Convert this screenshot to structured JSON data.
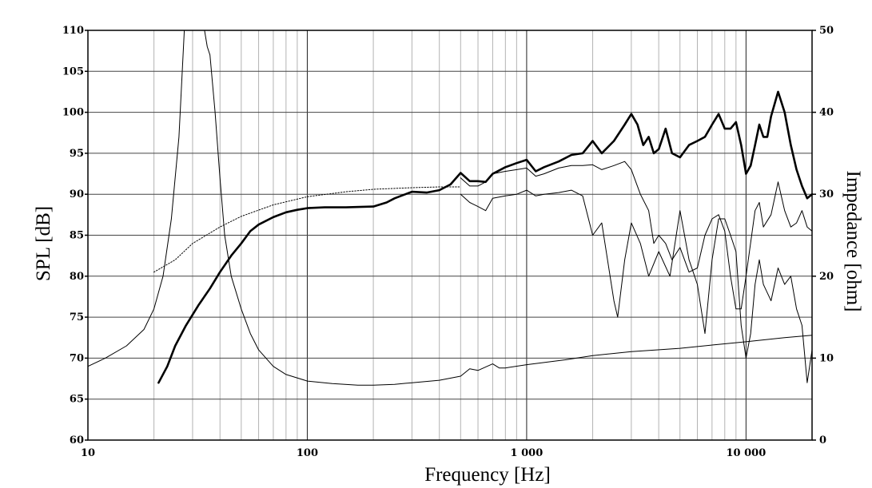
{
  "chart_data": {
    "type": "line",
    "xscale": "log",
    "xlim": [
      10,
      20000
    ],
    "ylim": [
      60,
      110
    ],
    "y2lim": [
      0,
      50
    ],
    "grid": true,
    "xlabel": "Frequency [Hz]",
    "ylabel": "SPL [dB]",
    "y2label": "Impedance [ohm]",
    "x_ticks": [
      {
        "value": 10,
        "label": "10"
      },
      {
        "value": 100,
        "label": "100"
      },
      {
        "value": 1000,
        "label": "1 000"
      },
      {
        "value": 10000,
        "label": "10 000"
      }
    ],
    "y_ticks": [
      60,
      65,
      70,
      75,
      80,
      85,
      90,
      95,
      100,
      105,
      110
    ],
    "y2_ticks": [
      0,
      10,
      20,
      30,
      40,
      50
    ],
    "series": [
      {
        "axis": "left",
        "style": "thick",
        "points": [
          [
            21,
            67
          ],
          [
            23,
            69
          ],
          [
            25,
            71.5
          ],
          [
            28,
            74
          ],
          [
            32,
            76.5
          ],
          [
            36,
            78.5
          ],
          [
            40,
            80.5
          ],
          [
            45,
            82.5
          ],
          [
            50,
            84
          ],
          [
            55,
            85.5
          ],
          [
            60,
            86.3
          ],
          [
            70,
            87.2
          ],
          [
            80,
            87.8
          ],
          [
            90,
            88.1
          ],
          [
            100,
            88.3
          ],
          [
            120,
            88.4
          ],
          [
            150,
            88.4
          ],
          [
            200,
            88.5
          ],
          [
            230,
            89
          ],
          [
            250,
            89.5
          ],
          [
            280,
            90
          ],
          [
            300,
            90.3
          ],
          [
            350,
            90.2
          ],
          [
            400,
            90.5
          ],
          [
            450,
            91.2
          ],
          [
            500,
            92.6
          ],
          [
            550,
            91.6
          ],
          [
            600,
            91.6
          ],
          [
            650,
            91.5
          ],
          [
            700,
            92.5
          ],
          [
            800,
            93.3
          ],
          [
            900,
            93.8
          ],
          [
            1000,
            94.2
          ],
          [
            1100,
            92.8
          ],
          [
            1200,
            93.3
          ],
          [
            1400,
            94
          ],
          [
            1600,
            94.8
          ],
          [
            1800,
            95
          ],
          [
            2000,
            96.5
          ],
          [
            2200,
            95
          ],
          [
            2500,
            96.5
          ],
          [
            2800,
            98.5
          ],
          [
            3000,
            99.8
          ],
          [
            3200,
            98.5
          ],
          [
            3400,
            96
          ],
          [
            3600,
            97
          ],
          [
            3800,
            95
          ],
          [
            4000,
            95.5
          ],
          [
            4300,
            98
          ],
          [
            4600,
            95
          ],
          [
            5000,
            94.5
          ],
          [
            5500,
            96
          ],
          [
            6000,
            96.5
          ],
          [
            6500,
            97
          ],
          [
            7000,
            98.5
          ],
          [
            7500,
            99.8
          ],
          [
            8000,
            98
          ],
          [
            8500,
            98
          ],
          [
            9000,
            98.8
          ],
          [
            9500,
            96
          ],
          [
            10000,
            92.5
          ],
          [
            10500,
            93.5
          ],
          [
            11000,
            96
          ],
          [
            11500,
            98.5
          ],
          [
            12000,
            97
          ],
          [
            12500,
            97
          ],
          [
            13000,
            99.5
          ],
          [
            14000,
            102.5
          ],
          [
            15000,
            100
          ],
          [
            16000,
            96
          ],
          [
            17000,
            93
          ],
          [
            18000,
            91
          ],
          [
            19000,
            89.5
          ],
          [
            20000,
            90
          ]
        ]
      },
      {
        "axis": "left",
        "style": "dotted",
        "points": [
          [
            20,
            80.5
          ],
          [
            25,
            82
          ],
          [
            30,
            84
          ],
          [
            40,
            86
          ],
          [
            50,
            87.3
          ],
          [
            70,
            88.7
          ],
          [
            100,
            89.7
          ],
          [
            150,
            90.3
          ],
          [
            200,
            90.6
          ],
          [
            300,
            90.8
          ],
          [
            400,
            90.9
          ],
          [
            500,
            90.9
          ]
        ]
      },
      {
        "axis": "left",
        "style": "thin",
        "points": [
          [
            500,
            92
          ],
          [
            550,
            91
          ],
          [
            600,
            91
          ],
          [
            650,
            91.5
          ],
          [
            700,
            92.5
          ],
          [
            800,
            92.8
          ],
          [
            900,
            93
          ],
          [
            1000,
            93.2
          ],
          [
            1100,
            92.2
          ],
          [
            1200,
            92.5
          ],
          [
            1400,
            93.2
          ],
          [
            1600,
            93.5
          ],
          [
            1800,
            93.5
          ],
          [
            2000,
            93.6
          ],
          [
            2200,
            93
          ],
          [
            2500,
            93.5
          ],
          [
            2800,
            94
          ],
          [
            3000,
            93
          ],
          [
            3300,
            90
          ],
          [
            3600,
            88
          ],
          [
            3800,
            84
          ],
          [
            4000,
            85
          ],
          [
            4300,
            84
          ],
          [
            4600,
            82
          ],
          [
            5000,
            83.5
          ],
          [
            5500,
            80.5
          ],
          [
            6000,
            81
          ],
          [
            6500,
            85
          ],
          [
            7000,
            87
          ],
          [
            7500,
            87.5
          ],
          [
            8000,
            85.5
          ],
          [
            8500,
            80
          ],
          [
            9000,
            76
          ],
          [
            9500,
            76
          ],
          [
            10000,
            80
          ],
          [
            11000,
            88
          ],
          [
            11500,
            89
          ],
          [
            12000,
            86
          ],
          [
            13000,
            87.5
          ],
          [
            14000,
            91.5
          ],
          [
            15000,
            88
          ],
          [
            16000,
            86
          ],
          [
            17000,
            86.5
          ],
          [
            18000,
            88
          ],
          [
            19000,
            86
          ],
          [
            20000,
            85.5
          ]
        ]
      },
      {
        "axis": "left",
        "style": "thin",
        "points": [
          [
            500,
            90
          ],
          [
            550,
            89
          ],
          [
            600,
            88.5
          ],
          [
            650,
            88
          ],
          [
            700,
            89.5
          ],
          [
            800,
            89.8
          ],
          [
            900,
            90
          ],
          [
            1000,
            90.5
          ],
          [
            1100,
            89.8
          ],
          [
            1200,
            90
          ],
          [
            1400,
            90.2
          ],
          [
            1600,
            90.5
          ],
          [
            1800,
            89.8
          ],
          [
            2000,
            85
          ],
          [
            2200,
            86.5
          ],
          [
            2500,
            77
          ],
          [
            2600,
            75
          ],
          [
            2800,
            82
          ],
          [
            3000,
            86.5
          ],
          [
            3300,
            84
          ],
          [
            3600,
            80
          ],
          [
            4000,
            83
          ],
          [
            4500,
            80
          ],
          [
            5000,
            88
          ],
          [
            5500,
            82
          ],
          [
            6000,
            79
          ],
          [
            6500,
            73
          ],
          [
            7000,
            82
          ],
          [
            7500,
            87
          ],
          [
            8000,
            87
          ],
          [
            8500,
            85
          ],
          [
            9000,
            83
          ],
          [
            9500,
            74
          ],
          [
            10000,
            70
          ],
          [
            10500,
            73
          ],
          [
            11000,
            79
          ],
          [
            11500,
            82
          ],
          [
            12000,
            79
          ],
          [
            13000,
            77
          ],
          [
            14000,
            81
          ],
          [
            15000,
            79
          ],
          [
            16000,
            80
          ],
          [
            17000,
            76
          ],
          [
            18000,
            74
          ],
          [
            19000,
            67
          ],
          [
            20000,
            71
          ]
        ]
      },
      {
        "axis": "right",
        "style": "thin",
        "points": [
          [
            10,
            9
          ],
          [
            12,
            10
          ],
          [
            15,
            11.5
          ],
          [
            18,
            13.5
          ],
          [
            20,
            16
          ],
          [
            22,
            20
          ],
          [
            24,
            27
          ],
          [
            26,
            37
          ],
          [
            27.5,
            50
          ],
          [
            34,
            50
          ],
          [
            35,
            48
          ],
          [
            36,
            47
          ],
          [
            38,
            40
          ],
          [
            40,
            32
          ],
          [
            42,
            25
          ],
          [
            45,
            20
          ],
          [
            50,
            16
          ],
          [
            55,
            13
          ],
          [
            60,
            11
          ],
          [
            70,
            9
          ],
          [
            80,
            8
          ],
          [
            100,
            7.2
          ],
          [
            130,
            6.9
          ],
          [
            170,
            6.7
          ],
          [
            200,
            6.7
          ],
          [
            250,
            6.8
          ],
          [
            300,
            7
          ],
          [
            400,
            7.3
          ],
          [
            500,
            7.8
          ],
          [
            550,
            8.7
          ],
          [
            600,
            8.5
          ],
          [
            700,
            9.3
          ],
          [
            750,
            8.8
          ],
          [
            800,
            8.8
          ],
          [
            1000,
            9.2
          ],
          [
            1500,
            9.8
          ],
          [
            2000,
            10.3
          ],
          [
            3000,
            10.8
          ],
          [
            5000,
            11.2
          ],
          [
            7000,
            11.6
          ],
          [
            10000,
            12
          ],
          [
            15000,
            12.5
          ],
          [
            20000,
            12.8
          ]
        ]
      }
    ]
  }
}
